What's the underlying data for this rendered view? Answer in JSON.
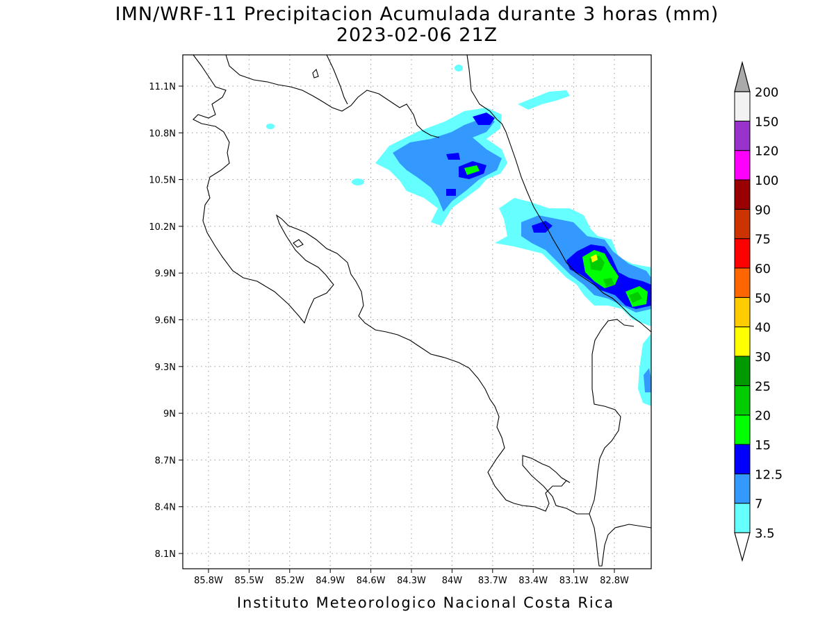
{
  "header": {
    "title": "IMN/WRF-11 Precipitacion Acumulada durante 3 horas (mm)",
    "subtitle": "2023-02-06 21Z"
  },
  "footer": {
    "credit": "Instituto Meteorologico Nacional Costa Rica"
  },
  "map": {
    "lat_labels": [
      "11.1N",
      "10.8N",
      "10.5N",
      "10.2N",
      "9.9N",
      "9.6N",
      "9.3N",
      "9N",
      "8.7N",
      "8.4N",
      "8.1N"
    ],
    "lon_labels": [
      "85.8W",
      "85.5W",
      "85.2W",
      "84.9W",
      "84.6W",
      "84.3W",
      "84W",
      "83.7W",
      "83.4W",
      "83.1W",
      "82.8W"
    ],
    "grid": "dotted",
    "coastline_color": "#000000"
  },
  "legend": {
    "units": "mm",
    "bins": [
      {
        "label": "3.5",
        "color": "#66ffff"
      },
      {
        "label": "7",
        "color": "#3399ff"
      },
      {
        "label": "12.5",
        "color": "#0000ff"
      },
      {
        "label": "15",
        "color": "#00ff00"
      },
      {
        "label": "20",
        "color": "#00cc00"
      },
      {
        "label": "25",
        "color": "#009900"
      },
      {
        "label": "30",
        "color": "#ffff00"
      },
      {
        "label": "40",
        "color": "#ffcc00"
      },
      {
        "label": "50",
        "color": "#ff6600"
      },
      {
        "label": "60",
        "color": "#ff0000"
      },
      {
        "label": "75",
        "color": "#cc3300"
      },
      {
        "label": "90",
        "color": "#990000"
      },
      {
        "label": "100",
        "color": "#ff00ff"
      },
      {
        "label": "120",
        "color": "#9933cc"
      },
      {
        "label": "150",
        "color": "#f2f2f2"
      },
      {
        "label": "200",
        "color": "#aaaaaa"
      }
    ]
  }
}
